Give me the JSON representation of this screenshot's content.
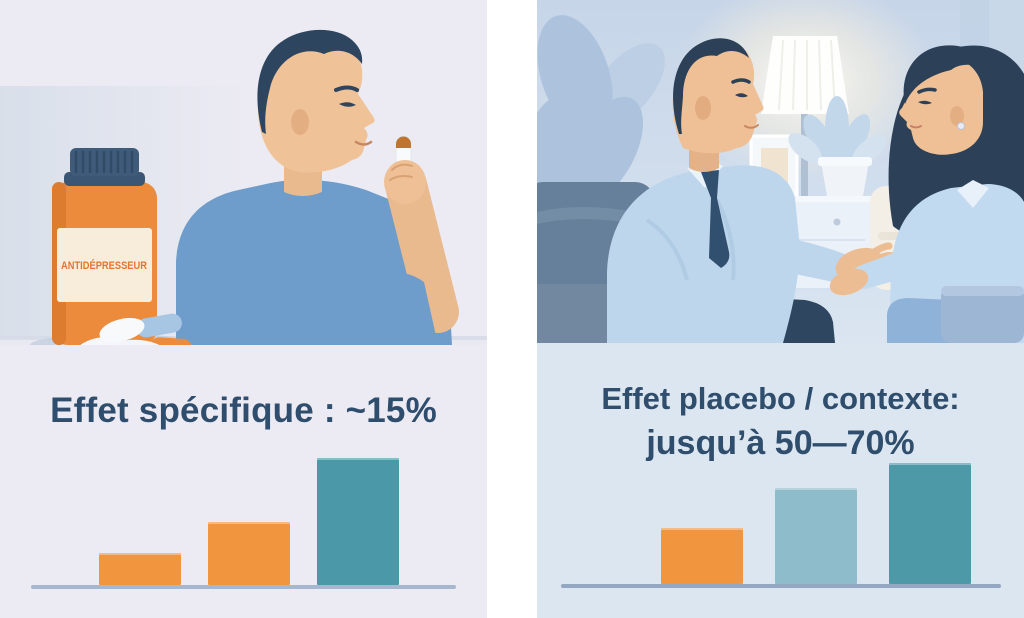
{
  "panels": {
    "left": {
      "bottle_label": "ANTIDÉPRESSEUR",
      "caption": "Effet spécifique : ~15%"
    },
    "right": {
      "caption_line1": "Effet placebo / contexte:",
      "caption_line2": "jusqu’à 50—70%"
    }
  },
  "chart_data": [
    {
      "type": "bar",
      "panel": "left",
      "title": "Effet spécifique : ~15%",
      "categories": [
        "",
        "",
        ""
      ],
      "values_relative_height_pct": [
        25,
        50,
        100
      ],
      "colors": [
        "#F2953F",
        "#F2953F",
        "#4A98A8"
      ],
      "baseline_color": "#A5B8D0",
      "axes": "none",
      "grid": false,
      "legend": false
    },
    {
      "type": "bar",
      "panel": "right",
      "title": "Effet placebo / contexte: jusqu’à 50—70%",
      "categories": [
        "",
        "",
        ""
      ],
      "values_relative_height_pct": [
        46,
        79,
        100
      ],
      "colors": [
        "#F2953F",
        "#8FBCCB",
        "#4E99A8"
      ],
      "baseline_color": "#93A6C2",
      "axes": "none",
      "grid": false,
      "legend": false
    }
  ],
  "colors": {
    "left_panel_bg": "#ECEBF3",
    "right_panel_bg": "#DCE6F1",
    "caption_text": "#2F4D6C",
    "bottle_orange": "#EC8B3B",
    "bottle_cap_navy": "#3E5C7A",
    "label_cream": "#F8ECDA",
    "label_text_orange": "#E2762E",
    "shirt_blue": "#6E9CCB",
    "gutter_white": "#FFFFFF"
  }
}
